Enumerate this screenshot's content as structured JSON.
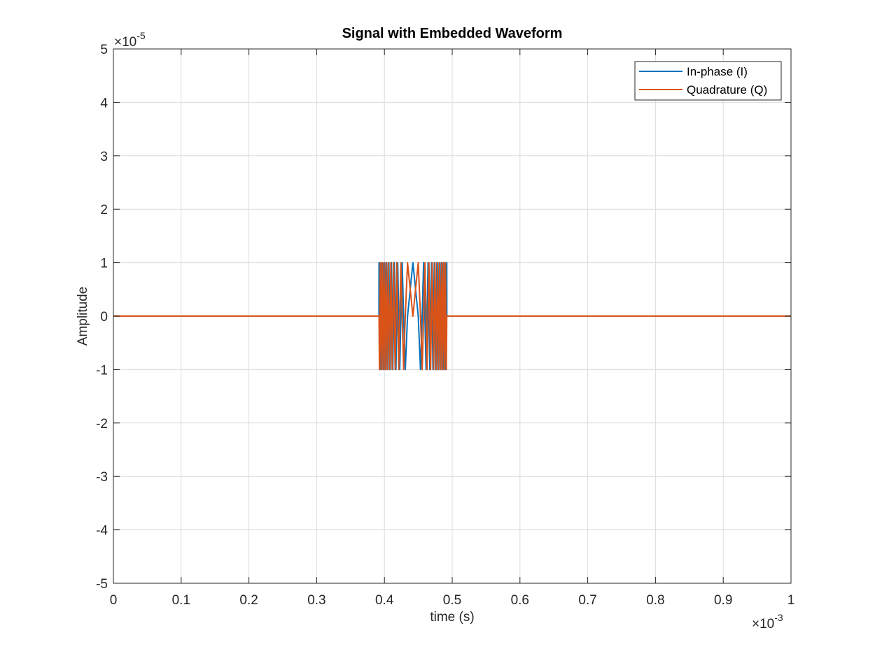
{
  "chart_data": {
    "type": "line",
    "title": "Signal with Embedded Waveform",
    "x_label": "time (s)",
    "y_label": "Amplitude",
    "x_multiplier": {
      "base": "×10",
      "exponent": "-3"
    },
    "y_multiplier": {
      "base": "×10",
      "exponent": "-5"
    },
    "x": [
      0,
      0.3919,
      0.392,
      0.3926,
      0.3933,
      0.3939,
      0.3946,
      0.3952,
      0.3959,
      0.3966,
      0.3973,
      0.398,
      0.3987,
      0.3994,
      0.4002,
      0.4009,
      0.4017,
      0.4025,
      0.4033,
      0.4041,
      0.4049,
      0.4058,
      0.4066,
      0.4075,
      0.4085,
      0.4094,
      0.4104,
      0.4114,
      0.4124,
      0.4135,
      0.4146,
      0.4158,
      0.417,
      0.4183,
      0.4196,
      0.4211,
      0.4226,
      0.4243,
      0.4262,
      0.4283,
      0.4308,
      0.4341,
      0.442,
      0.4499,
      0.4532,
      0.4557,
      0.4578,
      0.4597,
      0.4614,
      0.4629,
      0.4644,
      0.4657,
      0.467,
      0.4682,
      0.4694,
      0.4705,
      0.4716,
      0.4726,
      0.4736,
      0.4746,
      0.4755,
      0.4765,
      0.4774,
      0.4782,
      0.4791,
      0.4799,
      0.4807,
      0.4815,
      0.4823,
      0.4831,
      0.4838,
      0.4846,
      0.4853,
      0.486,
      0.4867,
      0.4874,
      0.4881,
      0.4888,
      0.4894,
      0.4901,
      0.4907,
      0.4914,
      0.492,
      0.4921,
      1
    ],
    "series": [
      {
        "name": "In-phase (I)",
        "color": "#0072BD",
        "values": [
          0,
          0,
          1,
          0,
          -1,
          0,
          1,
          0,
          -1,
          0,
          1,
          0,
          -1,
          0,
          1,
          0,
          -1,
          0,
          1,
          0,
          -1,
          0,
          1,
          0,
          -1,
          0,
          1,
          0,
          -1,
          0,
          1,
          0,
          -1,
          0,
          1,
          0,
          -1,
          0,
          1,
          0,
          -1,
          0,
          1,
          0,
          -1,
          0,
          1,
          0,
          -1,
          0,
          1,
          0,
          -1,
          0,
          1,
          0,
          -1,
          0,
          1,
          0,
          -1,
          0,
          1,
          0,
          -1,
          0,
          1,
          0,
          -1,
          0,
          1,
          0,
          -1,
          0,
          1,
          0,
          -1,
          0,
          1,
          0,
          -1,
          0,
          1,
          0,
          0
        ]
      },
      {
        "name": "Quadrature (Q)",
        "color": "#D95319",
        "values": [
          0,
          0,
          0,
          -1,
          0,
          1,
          0,
          -1,
          0,
          1,
          0,
          -1,
          0,
          1,
          0,
          -1,
          0,
          1,
          0,
          -1,
          0,
          1,
          0,
          -1,
          0,
          1,
          0,
          -1,
          0,
          1,
          0,
          -1,
          0,
          1,
          0,
          -1,
          0,
          1,
          0,
          -1,
          0,
          1,
          0,
          1,
          0,
          -1,
          0,
          1,
          0,
          -1,
          0,
          1,
          0,
          -1,
          0,
          1,
          0,
          -1,
          0,
          1,
          0,
          -1,
          0,
          1,
          0,
          -1,
          0,
          1,
          0,
          -1,
          0,
          1,
          0,
          -1,
          0,
          1,
          0,
          -1,
          0,
          1,
          0,
          -1,
          0,
          0,
          0
        ]
      }
    ],
    "xlim": [
      0,
      1
    ],
    "xticks": [
      0,
      0.1,
      0.2,
      0.3,
      0.4,
      0.5,
      0.6,
      0.7,
      0.8,
      0.9,
      1
    ],
    "ylim": [
      -5,
      5
    ],
    "yticks": [
      -5,
      -4,
      -3,
      -2,
      -1,
      0,
      1,
      2,
      3,
      4,
      5
    ],
    "grid": true,
    "legend": "top-right"
  }
}
